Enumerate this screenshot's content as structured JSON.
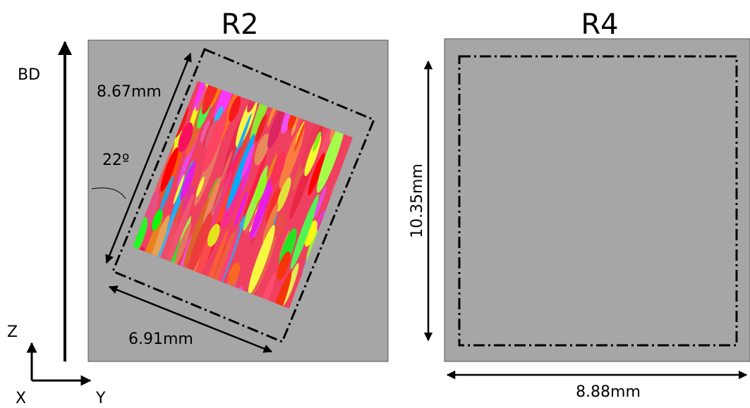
{
  "axis_labels": {
    "bd": "BD",
    "z": "Z",
    "x": "X",
    "y": "Y"
  },
  "panels": [
    {
      "title": "R2",
      "height_label": "8.67mm",
      "width_label": "6.91mm",
      "angle_label": "22º"
    },
    {
      "title": "R4",
      "height_label": "10.35mm",
      "width_label": "8.88mm"
    }
  ]
}
